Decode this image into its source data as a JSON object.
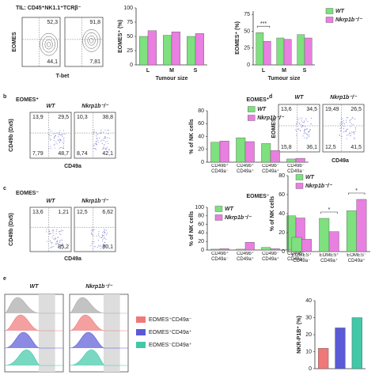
{
  "chart_data": [
    {
      "type": "bar",
      "ylabel": "EOMES⁺ (%)",
      "xlabel": "Tumour size",
      "categories": [
        "L",
        "M",
        "S"
      ],
      "series": [
        {
          "color": "#7ee07e",
          "values": [
            50,
            52,
            50
          ]
        },
        {
          "color": "#e97fe0",
          "values": [
            60,
            58,
            55
          ]
        }
      ],
      "ylim": [
        0,
        100
      ],
      "yticks": [
        0,
        25,
        50,
        75,
        100
      ]
    },
    {
      "type": "bar",
      "ylabel": "EOMES⁺ (%)",
      "xlabel": "Tumour size",
      "categories": [
        "L",
        "M",
        "S"
      ],
      "series": [
        {
          "name": "WT",
          "color": "#7ee07e",
          "values": [
            48,
            40,
            45
          ]
        },
        {
          "name": "Nkrp1b⁻/⁻",
          "color": "#e97fe0",
          "values": [
            35,
            38,
            40
          ]
        }
      ],
      "ylim": [
        0,
        80
      ],
      "yticks": [
        0,
        25,
        50,
        75
      ],
      "legend": "outside-right",
      "significance": [
        "***",
        null,
        null
      ]
    },
    {
      "type": "bar",
      "title": "EOMES⁺",
      "ylabel": "% of NK cells",
      "categories": [
        "CD49b⁺\nCD49a⁻",
        "CD49b⁺\nCD49a⁺",
        "CD49b⁻\nCD49a⁺",
        "CD49b⁻\nCD49a⁻"
      ],
      "series": [
        {
          "name": "WT",
          "color": "#7ee07e",
          "values": [
            31,
            38,
            29,
            5
          ]
        },
        {
          "name": "Nkrp1b⁻/⁻",
          "color": "#e97fe0",
          "values": [
            33,
            32,
            18,
            6
          ]
        }
      ],
      "ylim": [
        0,
        80
      ],
      "yticks": [
        0,
        20,
        40,
        60,
        80
      ],
      "legend": "upper-center"
    },
    {
      "type": "bar",
      "title": "EOMES⁻",
      "ylabel": "% of NK cells",
      "categories": [
        "CD49b⁺\nCD49a⁻",
        "CD49b⁺\nCD49a⁺",
        "CD49b⁻\nCD49a⁺",
        "CD49b⁻\nCD49a⁻"
      ],
      "series": [
        {
          "name": "WT",
          "color": "#7ee07e",
          "values": [
            2,
            2,
            6,
            80
          ]
        },
        {
          "name": "Nkrp1b⁻/⁻",
          "color": "#e97fe0",
          "values": [
            3,
            18,
            3,
            75
          ]
        }
      ],
      "ylim": [
        0,
        100
      ],
      "yticks": [
        0,
        20,
        40,
        60,
        80,
        100
      ],
      "legend": "upper-left"
    },
    {
      "type": "bar",
      "ylabel": "% of NK cells",
      "categories": [
        "EOMES⁺\nCD49a⁻",
        "EOMES⁺\nCD49a⁺",
        "EOMES⁻\nCD49a⁺"
      ],
      "series": [
        {
          "name": "WT",
          "color": "#7ee07e",
          "values": [
            15,
            35,
            43
          ]
        },
        {
          "name": "Nkrp1b⁻/⁻",
          "color": "#e97fe0",
          "values": [
            13,
            21,
            55
          ]
        }
      ],
      "ylim": [
        0,
        80
      ],
      "yticks": [
        0,
        20,
        40,
        60,
        80
      ],
      "legend": "upper-left",
      "significance": [
        null,
        "*",
        "*"
      ]
    },
    {
      "type": "bar",
      "ylabel": "NKR-P1B⁺ (%)",
      "values": [
        12,
        24,
        30
      ],
      "colors": [
        "#f07878",
        "#5a5ad8",
        "#40c8a8"
      ],
      "ylim": [
        0,
        40
      ],
      "yticks": [
        0,
        10,
        20,
        30,
        40
      ]
    }
  ],
  "panel_labels": [
    "b",
    "c",
    "d",
    "e"
  ],
  "flow_panels": {
    "top": {
      "title": "TIL: CD45⁺NK1.1⁺TCRβ⁻",
      "ylabel": "EOMES",
      "xlabel": "T-bet",
      "plots": [
        {
          "quadrants": {
            "tr": "52,3",
            "br": "44,1"
          }
        },
        {
          "quadrants": {
            "tr": "91,8",
            "br": "7,81"
          }
        }
      ]
    },
    "b": {
      "header": "EOMES⁺",
      "ylabel": "CD49b (Dx5)",
      "xlabel": "CD49a",
      "plots": [
        {
          "label": "WT",
          "quadrants": {
            "tl": "13,9",
            "tr": "29,5",
            "bl": "7,79",
            "br": "48,7"
          }
        },
        {
          "label": "Nkrp1b⁻/⁻",
          "quadrants": {
            "tl": "10,3",
            "tr": "38,8",
            "bl": "8,74",
            "br": "42,1"
          }
        }
      ]
    },
    "c": {
      "header": "EOMES⁻",
      "ylabel": "CD49b (Dx5)",
      "xlabel": "CD49a",
      "plots": [
        {
          "label": "WT",
          "quadrants": {
            "tl": "13,6",
            "tr": "1,21",
            "br": "85,2"
          }
        },
        {
          "label": "Nkrp1b⁻/⁻",
          "quadrants": {
            "tl": "12,5",
            "tr": "6,62",
            "br": "80,1"
          }
        }
      ]
    },
    "d": {
      "ylabel": "EOMES",
      "xlabel": "CD49a",
      "plots": [
        {
          "label": "WT",
          "quadrants": {
            "tl": "13,6",
            "tr": "34,5",
            "bl": "15,8",
            "br": "36,1"
          }
        },
        {
          "label": "Nkrp1b⁻/⁻",
          "quadrants": {
            "tl": "19,49",
            "tr": "26,5",
            "bl": "12,5",
            "br": "41,5"
          }
        }
      ]
    }
  },
  "histograms": {
    "plots": [
      {
        "label": "WT"
      },
      {
        "label": "Nkrp1b⁻/⁻"
      }
    ],
    "legend": [
      {
        "name": "EOMES⁺CD49a⁻",
        "color": "#f07878"
      },
      {
        "name": "EOMES⁺CD49a⁺",
        "color": "#5a5ad8"
      },
      {
        "name": "EOMES⁻CD49a⁺",
        "color": "#40c8a8"
      }
    ]
  }
}
